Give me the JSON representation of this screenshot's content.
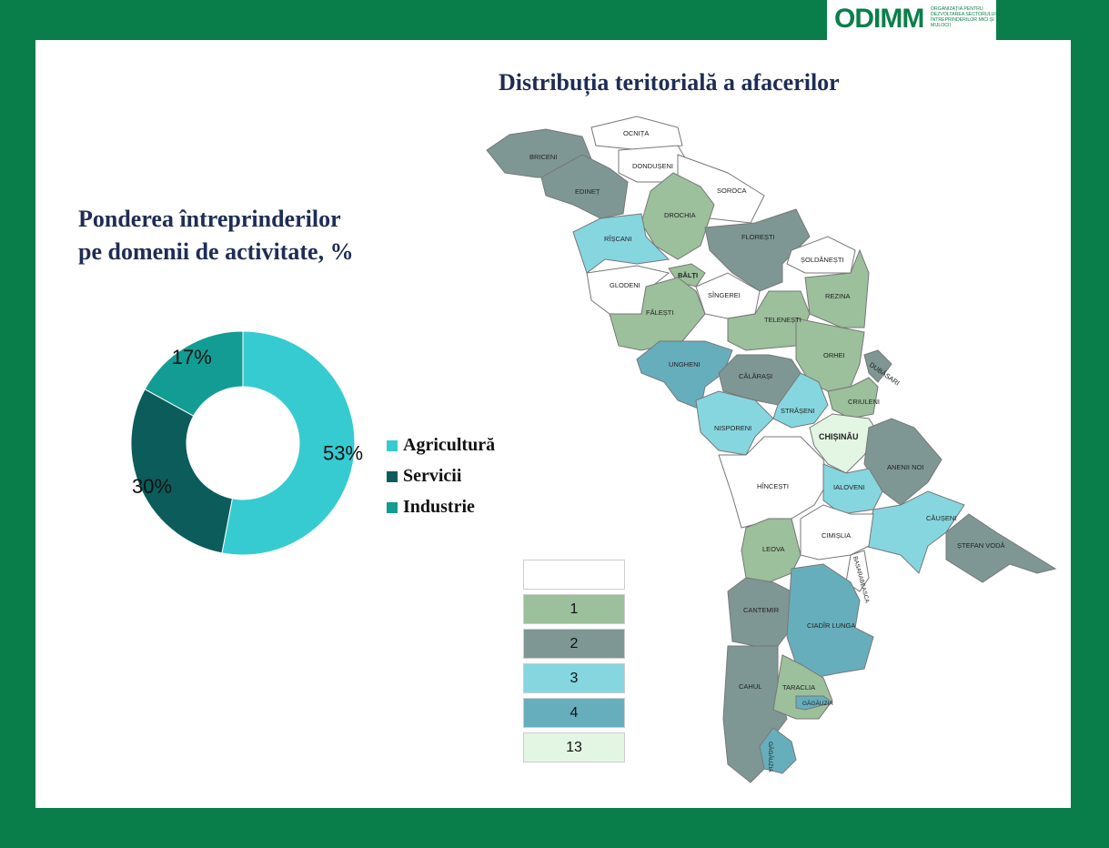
{
  "logo": {
    "wordmark": "ODIMM",
    "subtitle": "ORGANIZAȚIA PENTRU DEZVOLTAREA SECTORULUI ÎNTREPRINDERILOR MICI ȘI MIJLOCII"
  },
  "map": {
    "title": "Distribuția teritorială a  afacerilor",
    "legend": [
      {
        "label": "",
        "color": "#ffffff"
      },
      {
        "label": "1",
        "color": "#9cbf9c"
      },
      {
        "label": "2",
        "color": "#7f9794"
      },
      {
        "label": "3",
        "color": "#86d6e0"
      },
      {
        "label": "4",
        "color": "#67aebd"
      },
      {
        "label": "13",
        "color": "#e3f6e3"
      }
    ],
    "regions": {
      "ocnita": "OCNIȚA",
      "briceni": "BRICENI",
      "donduseni": "DONDUȘENI",
      "edinet": "EDINEȚ",
      "soroca": "SOROCA",
      "drochia": "DROCHIA",
      "riscani": "RÎȘCANI",
      "floresti": "FLOREȘTI",
      "soldanesti": "ȘOLDĂNEȘTI",
      "balti": "BĂLȚI",
      "glodeni": "GLODENI",
      "singerei": "SÎNGEREI",
      "rezina": "REZINA",
      "falesti": "FĂLEȘTI",
      "telenesti": "TELENEȘTI",
      "orhei": "ORHEI",
      "ungheni": "UNGHENI",
      "calarasi": "CĂLĂRAȘI",
      "dubasari": "DUBĂSARI",
      "criuleni": "CRIULENI",
      "straseni": "STRĂȘENI",
      "nisporeni": "NISPORENI",
      "chisinau": "CHIȘINĂU",
      "anenii_noi": "ANENII NOI",
      "hincesti": "HÎNCEȘTI",
      "ialoveni": "IALOVENI",
      "causeni": "CĂUȘENI",
      "cimislia": "CIMIȘLIA",
      "stefan_voda": "ȘTEFAN VODĂ",
      "leova": "LEOVA",
      "basarabeasca": "BASARABEASCA",
      "cantemir": "CANTEMIR",
      "ciadir_lunga": "CIADÎR LUNGA",
      "cahul": "CAHUL",
      "taraclia": "TARACLIA",
      "gagauzia_1": "GĂGĂUZIA",
      "gagauzia_2": "GĂGĂUZIA"
    }
  },
  "chart_data": {
    "type": "pie",
    "title": "Ponderea întreprinderilor pe domenii de activitate, %",
    "title_lines": [
      "Ponderea întreprinderilor",
      "pe domenii de activitate, %"
    ],
    "categories": [
      "Agricultură",
      "Servicii",
      "Industrie"
    ],
    "values": [
      53,
      30,
      17
    ],
    "labels": [
      "53%",
      "30%",
      "17%"
    ],
    "colors": [
      "#36cbd0",
      "#0b5c5a",
      "#129c94"
    ],
    "donut": true,
    "legend_position": "right"
  }
}
